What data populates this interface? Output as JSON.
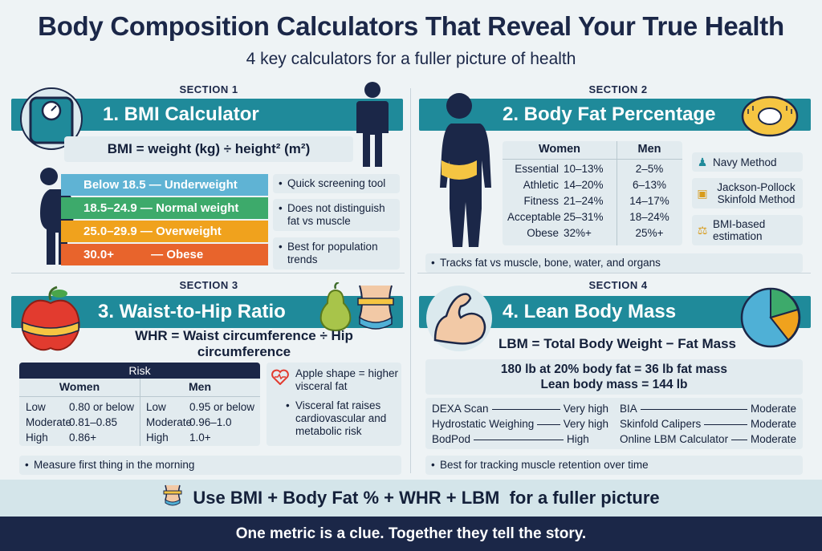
{
  "header": {
    "title": "Body Composition Calculators That Reveal Your True Health",
    "subtitle": "4 key calculators for a fuller picture of health"
  },
  "section1": {
    "label": "SECTION 1",
    "title": "1. BMI Calculator",
    "formula": "BMI = weight (kg) ÷ height² (m²)",
    "ranges": [
      {
        "range": "Below 18.5",
        "category": "Underweight",
        "color": "#5fb3d4"
      },
      {
        "range": "18.5–24.9",
        "category": "Normal weight",
        "color": "#3daa6b"
      },
      {
        "range": "25.0–29.9",
        "category": "Overweight",
        "color": "#f0a21d"
      },
      {
        "range": "30.0+",
        "category": "Obese",
        "color": "#e8642c"
      }
    ],
    "dash": "—",
    "notes": [
      "Quick screening tool",
      "Does not distinguish fat vs muscle",
      "Best for population trends"
    ]
  },
  "section2": {
    "label": "SECTION 2",
    "title": "2. Body Fat Percentage",
    "col_women": "Women",
    "col_men": "Men",
    "rows": [
      {
        "label": "Essential",
        "women": "10–13%",
        "men": "2–5%"
      },
      {
        "label": "Athletic",
        "women": "14–20%",
        "men": "6–13%"
      },
      {
        "label": "Fitness",
        "women": "21–24%",
        "men": "14–17%"
      },
      {
        "label": "Acceptable",
        "women": "25–31%",
        "men": "18–24%"
      },
      {
        "label": "Obese",
        "women": "32%+",
        "men": "25%+"
      }
    ],
    "methods": [
      "Navy Method",
      "Jackson-Pollock Skinfold Method",
      "BMI-based estimation"
    ],
    "note": "Tracks fat vs muscle, bone, water, and organs"
  },
  "section3": {
    "label": "SECTION 3",
    "title": "3. Waist-to-Hip Ratio",
    "formula": "WHR = Waist circumference ÷ Hip circumference",
    "risk_header": "Risk",
    "women": {
      "title": "Women",
      "rows": [
        {
          "level": "Low",
          "value": "0.80 or below"
        },
        {
          "level": "Moderate",
          "value": "0.81–0.85"
        },
        {
          "level": "High",
          "value": "0.86+"
        }
      ]
    },
    "men": {
      "title": "Men",
      "rows": [
        {
          "level": "Low",
          "value": "0.95 or below"
        },
        {
          "level": "Moderate",
          "value": "0.96–1.0"
        },
        {
          "level": "High",
          "value": "1.0+"
        }
      ]
    },
    "side_notes": [
      "Apple shape = higher visceral fat",
      "Visceral fat raises cardiovascular and metabolic risk"
    ],
    "note": "Measure first thing in the morning"
  },
  "section4": {
    "label": "SECTION 4",
    "title": "4. Lean Body Mass",
    "formula": "LBM = Total Body Weight − Fat Mass",
    "example_line1": "180 lb at 20% body fat = 36 lb fat mass",
    "example_line2": "Lean body mass = 144 lb",
    "methods_left": [
      {
        "name": "DEXA Scan",
        "accuracy": "Very high"
      },
      {
        "name": "Hydrostatic Weighing",
        "accuracy": "Very high"
      },
      {
        "name": "BodPod",
        "accuracy": "High"
      }
    ],
    "methods_right": [
      {
        "name": "BIA",
        "accuracy": "Moderate"
      },
      {
        "name": "Skinfold Calipers",
        "accuracy": "Moderate"
      },
      {
        "name": "Online LBM Calculator",
        "accuracy": "Moderate"
      }
    ],
    "note": "Best for tracking muscle retention over time"
  },
  "bottom": {
    "summary": "Use BMI + Body Fat % + WHR + LBM  for a fuller picture",
    "tagline": "One metric is a clue. Together they tell the story."
  },
  "icons": [
    "scale-icon",
    "person-icon",
    "tape-measure-icon",
    "apple-icon",
    "pear-icon",
    "waist-icon",
    "bicep-icon",
    "pie-chart-icon",
    "heart-icon",
    "caliper-icon"
  ],
  "colors": {
    "banner": "#1f8a9a",
    "navy": "#1b2748",
    "accent_yellow": "#f5c542"
  }
}
